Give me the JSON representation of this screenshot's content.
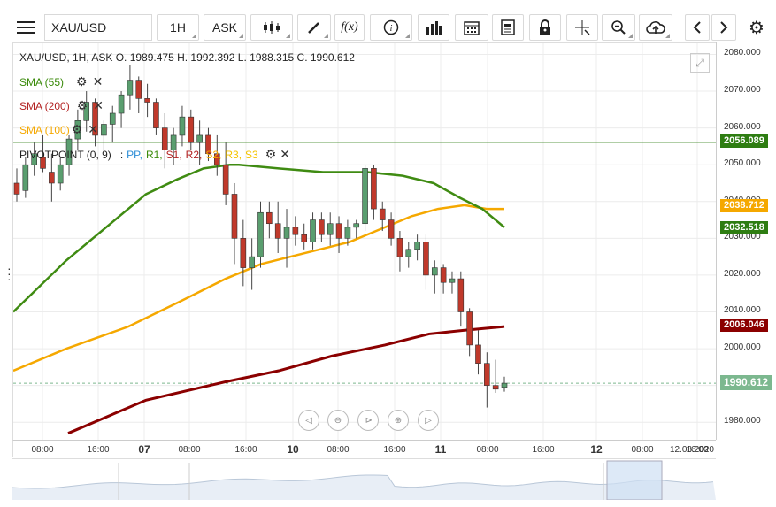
{
  "toolbar": {
    "symbol": "XAU/USD",
    "interval": "1H",
    "price_type": "ASK",
    "buttons": [
      {
        "name": "menu-icon",
        "glyph": "≡"
      },
      {
        "name": "candles-icon",
        "glyph": "⫶"
      },
      {
        "name": "draw-pencil-icon",
        "glyph": "✎"
      },
      {
        "name": "function-icon",
        "glyph": "f(x)"
      },
      {
        "name": "info-icon",
        "glyph": "ⓘ"
      },
      {
        "name": "bar-chart-icon",
        "glyph": "▂▄▆"
      },
      {
        "name": "calendar-icon",
        "glyph": "▦"
      },
      {
        "name": "news-icon",
        "glyph": "☰"
      },
      {
        "name": "lock-icon",
        "glyph": "🔒"
      },
      {
        "name": "crosshair-icon",
        "glyph": "✛"
      },
      {
        "name": "zoom-icon",
        "glyph": "⊕"
      },
      {
        "name": "cloud-upload-icon",
        "glyph": "☁"
      },
      {
        "name": "prev-icon",
        "glyph": "‹"
      },
      {
        "name": "next-icon",
        "glyph": "›"
      },
      {
        "name": "settings-gear-icon",
        "glyph": "⚙"
      }
    ]
  },
  "info": {
    "ohlc": "XAU/USD, 1H, ASK   O. 1989.475 H. 1992.392 L. 1988.315 C. 1990.612"
  },
  "indicators": [
    {
      "label": "SMA (55)",
      "color": "#3a8a0a"
    },
    {
      "label": "SMA (200)",
      "color": "#b22222"
    },
    {
      "label": "SMA (100)",
      "color": "#f5a800"
    }
  ],
  "pivot": {
    "prefix": "PIVOTPOINT (0, 9)",
    "sep": ":",
    "items": [
      {
        "label": "PP,",
        "color": "#2b8cd6"
      },
      {
        "label": "R1,",
        "color": "#3a8a0a"
      },
      {
        "label": "S1,",
        "color": "#b22222"
      },
      {
        "label": "R2,",
        "color": "#b22222"
      },
      {
        "label": "S2,",
        "color": "#f5a800"
      },
      {
        "label": "R3,",
        "color": "#f5c400"
      },
      {
        "label": "S3",
        "color": "#f5c400"
      }
    ]
  },
  "price_axis": {
    "labels": [
      "2080.000",
      "2070.000",
      "2060.000",
      "2050.000",
      "2040.000",
      "2030.000",
      "2020.000",
      "2010.000",
      "2000.000",
      "1990.000",
      "1980.000"
    ],
    "tags": [
      {
        "value": "2056.089",
        "color": "#2e7d12"
      },
      {
        "value": "2038.712",
        "color": "#f5a800"
      },
      {
        "value": "2032.518",
        "color": "#2e7d12"
      },
      {
        "value": "2006.046",
        "color": "#8b0000"
      },
      {
        "value": "1990.612",
        "color": "#7cb88f"
      }
    ]
  },
  "time_axis": {
    "labels": [
      "08:00",
      "16:00",
      "07",
      "08:00",
      "16:00",
      "10",
      "08:00",
      "16:00",
      "11",
      "08:00",
      "16:00",
      "12",
      "08:00",
      "16:00",
      "12.08.2020"
    ]
  },
  "nav_controls": [
    {
      "name": "pan-left-icon",
      "glyph": "◁"
    },
    {
      "name": "zoom-out-icon",
      "glyph": "⊖"
    },
    {
      "name": "reset-zoom-icon",
      "glyph": "⊳"
    },
    {
      "name": "zoom-in-icon",
      "glyph": "⊕"
    },
    {
      "name": "pan-right-icon",
      "glyph": "▷"
    }
  ],
  "chart_data": {
    "type": "candlestick",
    "ylim": [
      1975,
      2083
    ],
    "candles": [
      [
        2045,
        2049,
        2040,
        2042
      ],
      [
        2043,
        2052,
        2041,
        2050
      ],
      [
        2050,
        2056,
        2047,
        2053
      ],
      [
        2052,
        2058,
        2048,
        2049
      ],
      [
        2048,
        2053,
        2040,
        2045
      ],
      [
        2045,
        2052,
        2043,
        2050
      ],
      [
        2050,
        2058,
        2047,
        2057
      ],
      [
        2057,
        2065,
        2054,
        2062
      ],
      [
        2062,
        2070,
        2059,
        2067
      ],
      [
        2067,
        2068,
        2055,
        2058
      ],
      [
        2058,
        2062,
        2053,
        2061
      ],
      [
        2061,
        2066,
        2056,
        2064
      ],
      [
        2064,
        2070,
        2060,
        2069
      ],
      [
        2069,
        2077,
        2065,
        2073
      ],
      [
        2073,
        2074,
        2064,
        2068
      ],
      [
        2068,
        2072,
        2063,
        2067
      ],
      [
        2067,
        2068,
        2058,
        2060
      ],
      [
        2060,
        2064,
        2049,
        2054
      ],
      [
        2054,
        2060,
        2050,
        2058
      ],
      [
        2058,
        2066,
        2055,
        2063
      ],
      [
        2063,
        2065,
        2054,
        2056
      ],
      [
        2056,
        2062,
        2050,
        2058
      ],
      [
        2058,
        2060,
        2051,
        2053
      ],
      [
        2053,
        2058,
        2047,
        2050
      ],
      [
        2050,
        2056,
        2039,
        2042
      ],
      [
        2042,
        2045,
        2023,
        2030
      ],
      [
        2030,
        2035,
        2017,
        2022
      ],
      [
        2022,
        2030,
        2016,
        2025
      ],
      [
        2025,
        2040,
        2022,
        2037
      ],
      [
        2037,
        2040,
        2030,
        2034
      ],
      [
        2034,
        2040,
        2026,
        2030
      ],
      [
        2030,
        2038,
        2022,
        2033
      ],
      [
        2033,
        2036,
        2028,
        2031
      ],
      [
        2031,
        2034,
        2027,
        2029
      ],
      [
        2029,
        2037,
        2027,
        2035
      ],
      [
        2035,
        2037,
        2029,
        2031
      ],
      [
        2031,
        2037,
        2028,
        2034
      ],
      [
        2034,
        2036,
        2026,
        2030
      ],
      [
        2030,
        2035,
        2028,
        2033
      ],
      [
        2033,
        2035,
        2030,
        2034
      ],
      [
        2034,
        2050,
        2032,
        2049
      ],
      [
        2049,
        2050,
        2035,
        2038
      ],
      [
        2038,
        2040,
        2032,
        2035
      ],
      [
        2035,
        2037,
        2028,
        2030
      ],
      [
        2030,
        2032,
        2021,
        2025
      ],
      [
        2025,
        2029,
        2022,
        2027
      ],
      [
        2027,
        2031,
        2024,
        2029
      ],
      [
        2029,
        2031,
        2016,
        2020
      ],
      [
        2020,
        2024,
        2015,
        2022
      ],
      [
        2022,
        2023,
        2015,
        2018
      ],
      [
        2018,
        2021,
        2015,
        2019
      ],
      [
        2019,
        2021,
        2006,
        2010
      ],
      [
        2010,
        2011,
        1998,
        2001
      ],
      [
        2001,
        2005,
        1993,
        1996
      ],
      [
        1996,
        1999,
        1984,
        1990
      ],
      [
        1990,
        1997,
        1988,
        1989
      ],
      [
        1989.475,
        1992.392,
        1988.315,
        1990.612
      ]
    ],
    "sma55": [
      [
        0,
        2010
      ],
      [
        60,
        2024
      ],
      [
        110,
        2034
      ],
      [
        150,
        2042
      ],
      [
        185,
        2046
      ],
      [
        215,
        2049
      ],
      [
        245,
        2050
      ],
      [
        255,
        2050
      ],
      [
        300,
        2049
      ],
      [
        350,
        2048
      ],
      [
        400,
        2048
      ],
      [
        440,
        2047
      ],
      [
        475,
        2045
      ],
      [
        505,
        2041
      ],
      [
        530,
        2038
      ],
      [
        555,
        2033
      ]
    ],
    "sma100": [
      [
        0,
        1994
      ],
      [
        60,
        2000
      ],
      [
        130,
        2006
      ],
      [
        190,
        2013
      ],
      [
        240,
        2019
      ],
      [
        280,
        2023
      ],
      [
        330,
        2026
      ],
      [
        380,
        2029
      ],
      [
        420,
        2033
      ],
      [
        450,
        2036
      ],
      [
        480,
        2038
      ],
      [
        510,
        2039
      ],
      [
        535,
        2038
      ],
      [
        555,
        2038
      ]
    ],
    "sma200": [
      [
        62,
        1977
      ],
      [
        150,
        1986
      ],
      [
        240,
        1991
      ],
      [
        300,
        1994
      ],
      [
        360,
        1998
      ],
      [
        420,
        2001
      ],
      [
        470,
        2004
      ],
      [
        510,
        2005
      ],
      [
        555,
        2006
      ]
    ]
  }
}
